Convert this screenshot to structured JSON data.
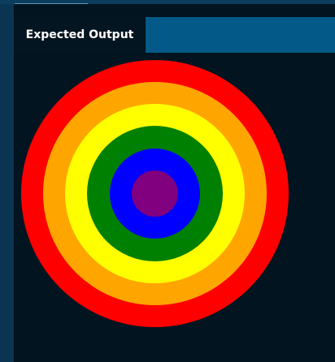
{
  "tab": {
    "label": "Expected Output"
  },
  "rings": [
    {
      "name": "ring-red",
      "color": "#ff0000"
    },
    {
      "name": "ring-orange",
      "color": "#ffa500"
    },
    {
      "name": "ring-yellow",
      "color": "#ffff00"
    },
    {
      "name": "ring-green",
      "color": "#008000"
    },
    {
      "name": "ring-blue",
      "color": "#0000ff"
    },
    {
      "name": "ring-purple",
      "color": "#800080"
    }
  ],
  "colors": {
    "panel_bg": "#011420",
    "tabbar_bg": "#035a88",
    "tab_bg": "#021520"
  }
}
